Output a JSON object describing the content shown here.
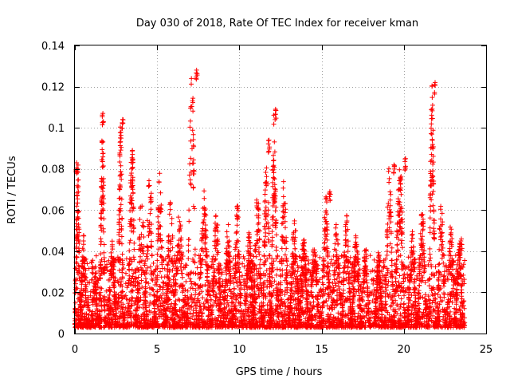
{
  "chart_data": {
    "type": "scatter",
    "title": "Day 030 of 2018, Rate Of TEC Index for receiver kman",
    "xlabel": "GPS time / hours",
    "ylabel": "ROTI / TECUs",
    "xlim": [
      0,
      25
    ],
    "ylim": [
      0,
      0.14
    ],
    "xticks": [
      0,
      5,
      10,
      15,
      20,
      25
    ],
    "yticks": [
      0,
      0.02,
      0.04,
      0.06,
      0.08,
      0.1,
      0.12,
      0.14
    ],
    "xtick_labels": [
      "0",
      "5",
      "10",
      "15",
      "20",
      "25"
    ],
    "ytick_labels": [
      "0",
      "0.02",
      "0.04",
      "0.06",
      "0.08",
      "0.1",
      "0.12",
      "0.14"
    ],
    "grid": true,
    "marker": "+",
    "series_color": "#ff0000",
    "series": [
      {
        "name": "ROTI",
        "points_description": "dense per-epoch ROTI samples for all satellites, 0 to ~23.7 h",
        "peaks": [
          {
            "x": 0.1,
            "y": 0.083
          },
          {
            "x": 1.7,
            "y": 0.107
          },
          {
            "x": 2.9,
            "y": 0.104
          },
          {
            "x": 3.5,
            "y": 0.089
          },
          {
            "x": 7.4,
            "y": 0.128
          },
          {
            "x": 9.9,
            "y": 0.062
          },
          {
            "x": 11.8,
            "y": 0.094
          },
          {
            "x": 12.2,
            "y": 0.109
          },
          {
            "x": 15.5,
            "y": 0.069
          },
          {
            "x": 19.4,
            "y": 0.082
          },
          {
            "x": 20.1,
            "y": 0.085
          },
          {
            "x": 21.9,
            "y": 0.122
          },
          {
            "x": 23.5,
            "y": 0.046
          }
        ]
      }
    ]
  }
}
